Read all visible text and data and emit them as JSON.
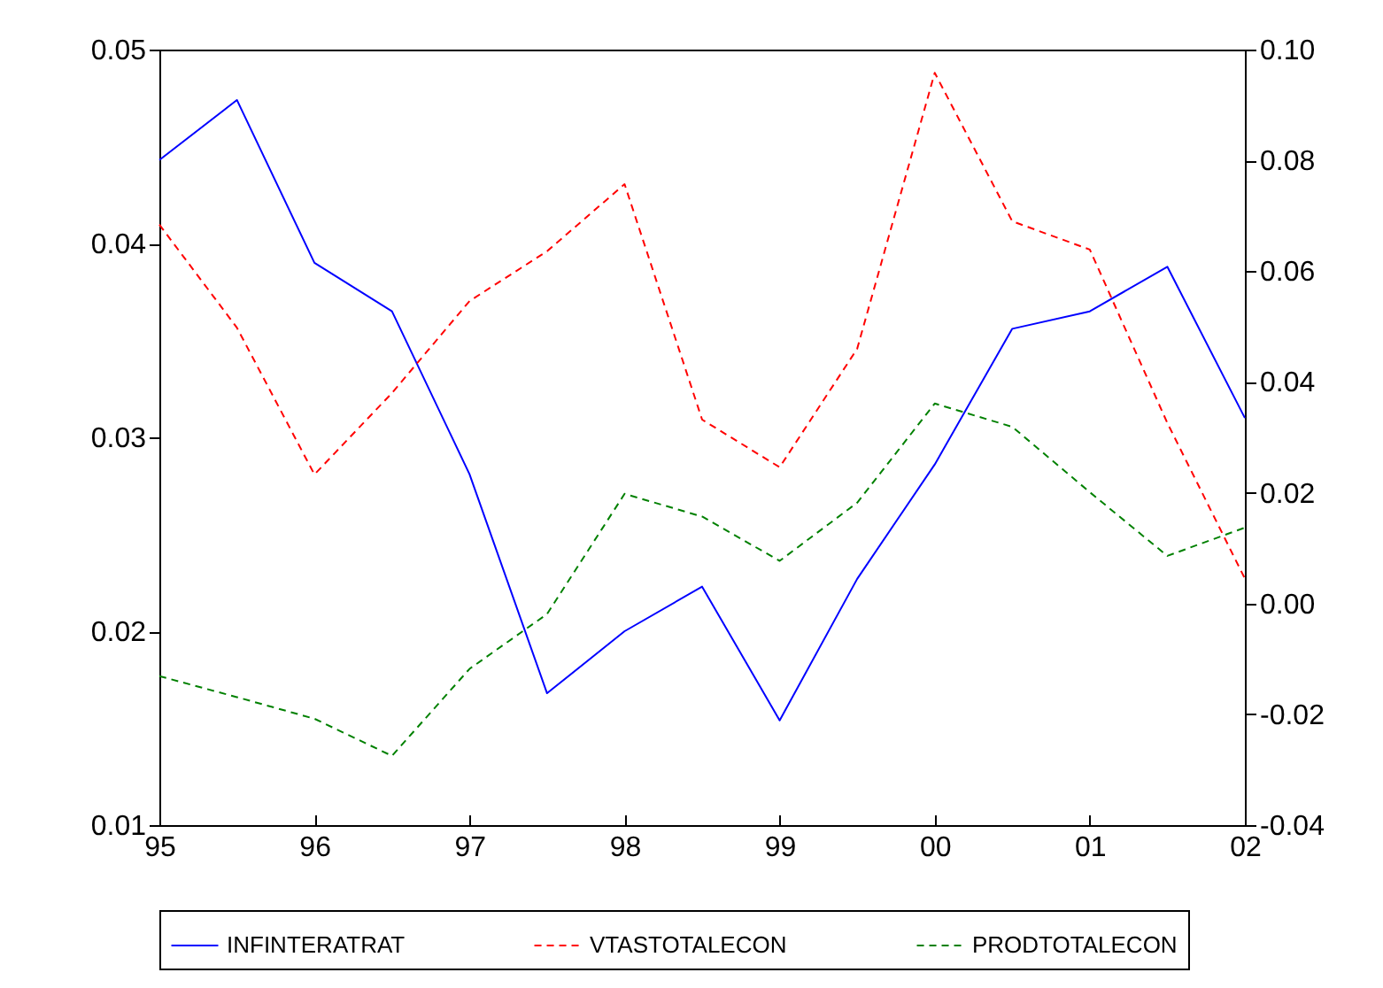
{
  "chart_data": {
    "type": "line",
    "x": [
      1995,
      1995.5,
      1996,
      1996.5,
      1997,
      1997.5,
      1998,
      1998.5,
      1999,
      1999.5,
      2000,
      2000.5,
      2001,
      2001.5,
      2002
    ],
    "xlim": [
      1995,
      2002
    ],
    "xticks": [
      {
        "value": 1995,
        "label": "95"
      },
      {
        "value": 1996,
        "label": "96"
      },
      {
        "value": 1997,
        "label": "97"
      },
      {
        "value": 1998,
        "label": "98"
      },
      {
        "value": 1999,
        "label": "99"
      },
      {
        "value": 2000,
        "label": "00"
      },
      {
        "value": 2001,
        "label": "01"
      },
      {
        "value": 2002,
        "label": "02"
      }
    ],
    "ylim": [
      0.01,
      0.05
    ],
    "yticks": [
      0.01,
      0.02,
      0.03,
      0.04,
      0.05
    ],
    "y2lim": [
      -0.04,
      0.1
    ],
    "y2ticks": [
      {
        "value": -0.04,
        "label": "-0.04"
      },
      {
        "value": -0.02,
        "label": "-0.02"
      },
      {
        "value": 0,
        "label": "0.00"
      },
      {
        "value": 0.02,
        "label": "0.02"
      },
      {
        "value": 0.04,
        "label": "0.04"
      },
      {
        "value": 0.06,
        "label": "0.06"
      },
      {
        "value": 0.08,
        "label": "0.08"
      },
      {
        "value": 0.1,
        "label": "0.10"
      }
    ],
    "series": [
      {
        "name": "INFINTERATRAT",
        "color": "#0000ff",
        "line_style": "solid",
        "values": [
          0.0443,
          0.0474,
          0.039,
          0.0365,
          0.0281,
          0.0168,
          0.02,
          0.0223,
          0.0154,
          0.0227,
          0.0286,
          0.0356,
          0.0365,
          0.0388,
          0.031
        ]
      },
      {
        "name": "VTASTOTALECON",
        "color": "#ff0000",
        "line_style": "dashed",
        "axis": "y2",
        "values": [
          0.0684,
          0.0498,
          0.0233,
          0.038,
          0.0546,
          0.0636,
          0.0757,
          0.0332,
          0.0246,
          0.046,
          0.0958,
          0.069,
          0.0639,
          0.0326,
          0.0045
        ]
      },
      {
        "name": "PRODTOTALECON",
        "color": "#008000",
        "line_style": "dashed",
        "axis": "y2",
        "values": [
          -0.0131,
          -0.0169,
          -0.0208,
          -0.0275,
          -0.0118,
          -0.0019,
          0.0198,
          0.0157,
          0.0077,
          0.0182,
          0.0361,
          0.0319,
          0.0201,
          0.0086,
          0.0137
        ]
      }
    ],
    "grid": false,
    "legend": "bottom",
    "marker": "none"
  }
}
